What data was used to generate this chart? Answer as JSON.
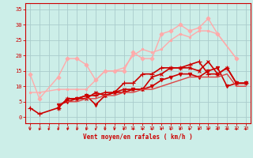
{
  "background_color": "#cceee8",
  "grid_color": "#aacccc",
  "xlabel": "Vent moyen/en rafales ( km/h )",
  "xlabel_color": "#cc0000",
  "tick_color": "#cc0000",
  "ylim": [
    -2,
    37
  ],
  "xlim": [
    -0.5,
    23.5
  ],
  "yticks": [
    0,
    5,
    10,
    15,
    20,
    25,
    30,
    35
  ],
  "xticks": [
    0,
    1,
    2,
    3,
    4,
    5,
    6,
    7,
    8,
    9,
    10,
    11,
    12,
    13,
    14,
    15,
    16,
    17,
    18,
    19,
    20,
    21,
    22,
    23
  ],
  "series": [
    {
      "x": [
        0,
        1,
        3,
        4,
        5,
        6,
        7,
        8,
        9,
        10,
        11,
        12,
        13,
        14,
        15,
        16,
        17,
        18,
        19,
        20,
        22
      ],
      "y": [
        14,
        6,
        13,
        19,
        19,
        17,
        12,
        15,
        15,
        15,
        21,
        19,
        19,
        27,
        28,
        30,
        28,
        29,
        32,
        27,
        19
      ],
      "color": "#ffaaaa",
      "linewidth": 1.0,
      "marker": "D",
      "markersize": 2.5
    },
    {
      "x": [
        0,
        1,
        3,
        4,
        5,
        6,
        7,
        8,
        9,
        10,
        11,
        12,
        13,
        14,
        15,
        16,
        17,
        18,
        19,
        20,
        22
      ],
      "y": [
        8,
        8,
        9,
        9,
        9,
        9,
        12,
        15,
        15,
        16,
        20,
        22,
        21,
        22,
        25,
        27,
        26,
        28,
        28,
        27,
        19
      ],
      "color": "#ffaaaa",
      "linewidth": 1.0,
      "marker": "s",
      "markersize": 2.0
    },
    {
      "x": [
        0,
        1,
        3,
        4,
        5,
        6,
        7,
        8,
        9,
        10,
        11,
        12,
        13,
        14,
        15,
        16,
        17,
        18,
        19,
        20,
        21,
        22,
        23
      ],
      "y": [
        3,
        1,
        3,
        6,
        6,
        7,
        7,
        8,
        8,
        11,
        11,
        14,
        14,
        16,
        16,
        16,
        17,
        18,
        14,
        14,
        16,
        11,
        11
      ],
      "color": "#cc0000",
      "linewidth": 1.2,
      "marker": "+",
      "markersize": 4
    },
    {
      "x": [
        3,
        4,
        5,
        6,
        7,
        8,
        9,
        10,
        11,
        12,
        13,
        14,
        15,
        16,
        17,
        18,
        19,
        20,
        21,
        22,
        23
      ],
      "y": [
        3,
        6,
        6,
        6,
        8,
        7,
        8,
        9,
        9,
        9,
        13,
        14,
        16,
        16,
        16,
        15,
        18,
        14,
        16,
        11,
        11
      ],
      "color": "#cc0000",
      "linewidth": 1.2,
      "marker": "x",
      "markersize": 3
    },
    {
      "x": [
        3,
        4,
        5,
        6,
        7,
        8,
        9,
        10,
        11,
        12,
        13,
        14,
        15,
        16,
        17,
        18,
        19,
        20,
        21,
        22,
        23
      ],
      "y": [
        4,
        5,
        6,
        7,
        4,
        7,
        8,
        8,
        9,
        9,
        10,
        12,
        13,
        14,
        14,
        13,
        15,
        16,
        10,
        11,
        11
      ],
      "color": "#cc0000",
      "linewidth": 1.2,
      "marker": "v",
      "markersize": 3
    },
    {
      "x": [
        4,
        5,
        6,
        7,
        8,
        9,
        10,
        11,
        12,
        13,
        14,
        15,
        16,
        17,
        18,
        19,
        20,
        21,
        22,
        23
      ],
      "y": [
        5,
        5,
        6,
        6,
        7,
        7,
        8,
        8,
        9,
        9,
        10,
        11,
        12,
        13,
        13,
        13,
        13,
        14,
        10,
        10
      ],
      "color": "#dd4444",
      "linewidth": 1.0,
      "marker": null,
      "markersize": 0
    }
  ],
  "arrow_color": "#cc0000"
}
